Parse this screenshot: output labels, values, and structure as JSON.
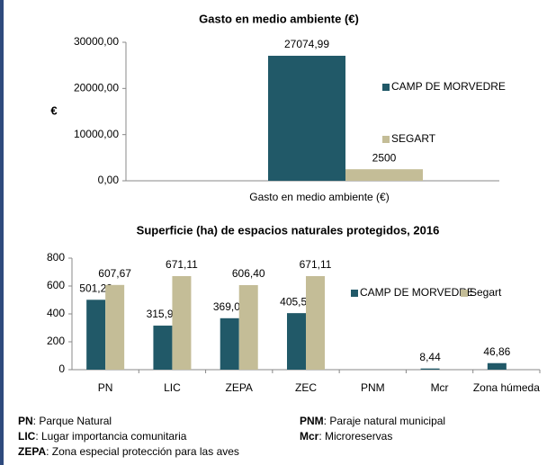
{
  "chart_data": [
    {
      "type": "bar",
      "title": "Gasto  en medio ambiente (€)",
      "y_label": "€",
      "categories": [
        "Gasto  en medio ambiente (€)"
      ],
      "series": [
        {
          "name": "CAMP DE MORVEDRE",
          "color": "#215968",
          "values": [
            27074.99
          ],
          "value_labels": [
            "27074,99"
          ]
        },
        {
          "name": "SEGART",
          "color": "#c4bd97",
          "values": [
            2500
          ]
        }
      ],
      "ylim": [
        0,
        30000
      ],
      "yticks": [
        {
          "value": 0,
          "label": "0,00"
        },
        {
          "value": 10000,
          "label": "10000,00"
        },
        {
          "value": 20000,
          "label": "20000,00"
        },
        {
          "value": 30000,
          "label": "30000,00"
        }
      ],
      "legend": "right"
    },
    {
      "type": "bar",
      "title": "Superficie (ha) de espacios naturales protegidos, 2016",
      "categories": [
        "PN",
        "LIC",
        "ZEPA",
        "ZEC",
        "PNM",
        "Mcr",
        "Zona húmeda"
      ],
      "series": [
        {
          "name": "CAMP DE MORVEDRE",
          "color": "#215968",
          "values": [
            501.23,
            315.91,
            369.0,
            405.54,
            null,
            8.44,
            46.86
          ],
          "value_labels": [
            "501,23",
            "315,91",
            "369,00",
            "405,54",
            null,
            "8,44",
            "46,86"
          ]
        },
        {
          "name": "Segart",
          "color": "#c4bd97",
          "values": [
            607.67,
            671.11,
            606.4,
            671.11,
            null,
            null,
            null
          ],
          "value_labels": [
            "607,67",
            "671,11",
            "606,40",
            "671,11",
            null,
            null,
            null
          ]
        }
      ],
      "ylim": [
        0,
        800
      ],
      "yticks": [
        0,
        200,
        400,
        600,
        800
      ],
      "legend": "top-right"
    }
  ],
  "notes": [
    {
      "abbr": "PN",
      "text": ": Parque Natural"
    },
    {
      "abbr": "LIC",
      "text": ": Lugar importancia comunitaria"
    },
    {
      "abbr": "ZEPA",
      "text": ": Zona especial protección para las aves"
    },
    {
      "abbr": "PNM",
      "text": ": Paraje natural municipal"
    },
    {
      "abbr": "Mcr",
      "text": ": Microreservas"
    }
  ]
}
